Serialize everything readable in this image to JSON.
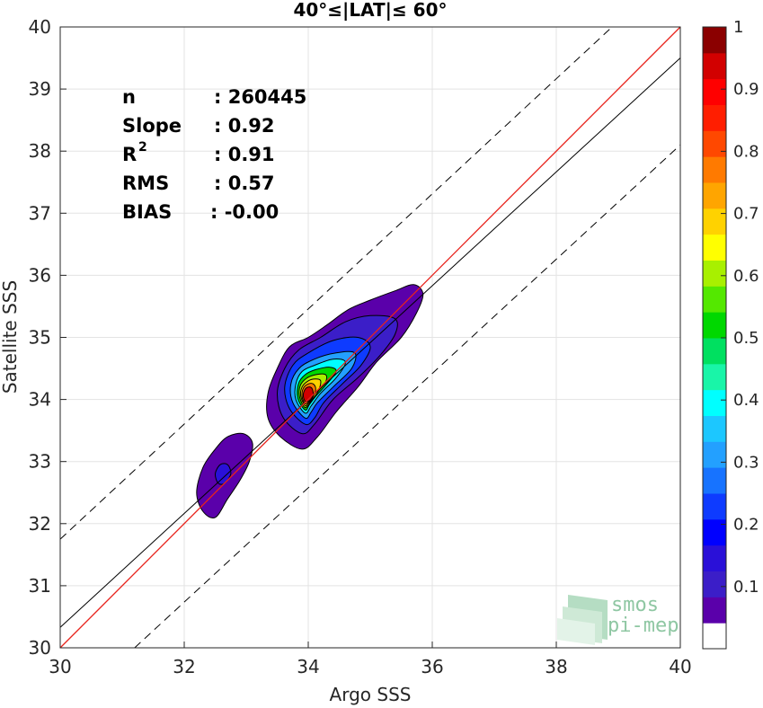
{
  "chart_data": {
    "type": "scatter",
    "title": "40°≤|LAT|≤ 60°",
    "xlabel": "Argo SSS",
    "ylabel": "Satellite SSS",
    "xlim": [
      30,
      40
    ],
    "ylim": [
      30,
      40
    ],
    "xticks": [
      "30",
      "32",
      "34",
      "36",
      "38",
      "40"
    ],
    "yticks": [
      "30",
      "31",
      "32",
      "33",
      "34",
      "35",
      "36",
      "37",
      "38",
      "39",
      "40"
    ],
    "grid": true,
    "stats": [
      {
        "label": "n",
        "value": ": 260445"
      },
      {
        "label": "Slope",
        "value": ": 0.92"
      },
      {
        "label": "R",
        "sup": "2",
        "value": ": 0.91"
      },
      {
        "label": "RMS",
        "value": ": 0.57"
      },
      {
        "label": "BIAS",
        "value": ": -0.00"
      }
    ],
    "reference_lines": {
      "one_to_one": {
        "x": [
          30,
          40
        ],
        "y": [
          30,
          40
        ],
        "color": "#e8231c"
      },
      "regression": {
        "x": [
          30,
          40
        ],
        "y": [
          30.33,
          39.5
        ],
        "color": "#000000"
      },
      "upper_bound": {
        "x": [
          30,
          38.9
        ],
        "y": [
          31.75,
          40
        ],
        "style": "dashed"
      },
      "lower_bound": {
        "x": [
          31.2,
          40
        ],
        "y": [
          30,
          38.1
        ],
        "style": "dashed"
      }
    },
    "density_contours": [
      {
        "level": 0.05,
        "polygon": [
          [
            32.5,
            32.1
          ],
          [
            32.3,
            32.2
          ],
          [
            32.2,
            32.5
          ],
          [
            32.3,
            32.9
          ],
          [
            32.5,
            33.2
          ],
          [
            32.7,
            33.4
          ],
          [
            32.95,
            33.45
          ],
          [
            33.1,
            33.3
          ],
          [
            33.05,
            33.0
          ],
          [
            32.9,
            32.7
          ],
          [
            32.7,
            32.4
          ]
        ]
      },
      {
        "level": 0.15,
        "polygon": [
          [
            32.55,
            32.65
          ],
          [
            32.5,
            32.8
          ],
          [
            32.58,
            32.95
          ],
          [
            32.7,
            32.95
          ],
          [
            32.75,
            32.8
          ],
          [
            32.65,
            32.65
          ]
        ]
      },
      {
        "level": 0.05,
        "polygon": [
          [
            33.9,
            33.2
          ],
          [
            33.55,
            33.4
          ],
          [
            33.35,
            33.7
          ],
          [
            33.35,
            34.1
          ],
          [
            33.5,
            34.5
          ],
          [
            33.7,
            34.85
          ],
          [
            34.0,
            35.0
          ],
          [
            34.3,
            35.2
          ],
          [
            34.65,
            35.45
          ],
          [
            35.0,
            35.6
          ],
          [
            35.4,
            35.75
          ],
          [
            35.7,
            35.85
          ],
          [
            35.85,
            35.7
          ],
          [
            35.75,
            35.4
          ],
          [
            35.5,
            35.0
          ],
          [
            35.1,
            34.6
          ],
          [
            34.8,
            34.2
          ],
          [
            34.45,
            33.8
          ],
          [
            34.15,
            33.4
          ]
        ]
      },
      {
        "level": 0.1,
        "polygon": [
          [
            33.9,
            33.45
          ],
          [
            33.6,
            33.7
          ],
          [
            33.5,
            34.1
          ],
          [
            33.62,
            34.5
          ],
          [
            33.85,
            34.8
          ],
          [
            34.2,
            35.0
          ],
          [
            34.6,
            35.25
          ],
          [
            35.0,
            35.35
          ],
          [
            35.4,
            35.3
          ],
          [
            35.4,
            35.05
          ],
          [
            35.15,
            34.7
          ],
          [
            34.8,
            34.35
          ],
          [
            34.4,
            34.0
          ],
          [
            34.1,
            33.6
          ]
        ]
      },
      {
        "level": 0.2,
        "polygon": [
          [
            33.95,
            33.6
          ],
          [
            33.7,
            33.85
          ],
          [
            33.62,
            34.2
          ],
          [
            33.75,
            34.55
          ],
          [
            34.0,
            34.75
          ],
          [
            34.4,
            34.95
          ],
          [
            34.8,
            35.0
          ],
          [
            35.0,
            34.85
          ],
          [
            34.85,
            34.55
          ],
          [
            34.55,
            34.25
          ],
          [
            34.25,
            33.95
          ],
          [
            34.1,
            33.7
          ]
        ]
      },
      {
        "level": 0.3,
        "polygon": [
          [
            33.95,
            33.7
          ],
          [
            33.75,
            33.95
          ],
          [
            33.72,
            34.25
          ],
          [
            33.85,
            34.5
          ],
          [
            34.1,
            34.65
          ],
          [
            34.45,
            34.75
          ],
          [
            34.75,
            34.75
          ],
          [
            34.7,
            34.5
          ],
          [
            34.4,
            34.2
          ],
          [
            34.15,
            33.95
          ],
          [
            34.05,
            33.8
          ]
        ]
      },
      {
        "level": 0.4,
        "polygon": [
          [
            33.95,
            33.78
          ],
          [
            33.8,
            34.0
          ],
          [
            33.8,
            34.25
          ],
          [
            33.9,
            34.45
          ],
          [
            34.1,
            34.55
          ],
          [
            34.4,
            34.65
          ],
          [
            34.6,
            34.6
          ],
          [
            34.45,
            34.35
          ],
          [
            34.2,
            34.1
          ],
          [
            34.05,
            33.9
          ]
        ]
      },
      {
        "level": 0.5,
        "polygon": [
          [
            33.95,
            33.83
          ],
          [
            33.83,
            34.02
          ],
          [
            33.84,
            34.25
          ],
          [
            33.95,
            34.4
          ],
          [
            34.12,
            34.48
          ],
          [
            34.35,
            34.52
          ],
          [
            34.45,
            34.45
          ],
          [
            34.3,
            34.25
          ],
          [
            34.12,
            34.05
          ],
          [
            34.02,
            33.92
          ]
        ]
      },
      {
        "level": 0.6,
        "polygon": [
          [
            33.95,
            33.87
          ],
          [
            33.86,
            34.04
          ],
          [
            33.87,
            34.22
          ],
          [
            33.97,
            34.34
          ],
          [
            34.12,
            34.4
          ],
          [
            34.28,
            34.4
          ],
          [
            34.28,
            34.28
          ],
          [
            34.15,
            34.12
          ],
          [
            34.05,
            33.98
          ]
        ]
      },
      {
        "level": 0.7,
        "polygon": [
          [
            33.95,
            33.9
          ],
          [
            33.88,
            34.05
          ],
          [
            33.9,
            34.2
          ],
          [
            34.0,
            34.3
          ],
          [
            34.12,
            34.33
          ],
          [
            34.2,
            34.3
          ],
          [
            34.17,
            34.15
          ],
          [
            34.08,
            34.02
          ],
          [
            34.01,
            33.95
          ]
        ]
      },
      {
        "level": 0.8,
        "polygon": [
          [
            33.95,
            33.93
          ],
          [
            33.9,
            34.05
          ],
          [
            33.92,
            34.18
          ],
          [
            34.0,
            34.25
          ],
          [
            34.08,
            34.25
          ],
          [
            34.12,
            34.17
          ],
          [
            34.08,
            34.05
          ],
          [
            34.02,
            33.97
          ]
        ]
      },
      {
        "level": 0.95,
        "polygon": [
          [
            33.96,
            33.96
          ],
          [
            33.92,
            34.05
          ],
          [
            33.94,
            34.15
          ],
          [
            34.0,
            34.2
          ],
          [
            34.06,
            34.18
          ],
          [
            34.08,
            34.08
          ],
          [
            34.04,
            34.0
          ]
        ]
      }
    ],
    "colorbar": {
      "range": [
        0,
        1
      ],
      "ticks": [
        "0.1",
        "0.2",
        "0.3",
        "0.4",
        "0.5",
        "0.6",
        "0.7",
        "0.8",
        "0.9",
        "1"
      ],
      "colors": [
        "#ffffff",
        "#5a00aa",
        "#3b1ec8",
        "#2a10d8",
        "#0000ff",
        "#0e3bff",
        "#1773ff",
        "#23a0ff",
        "#1cc7ff",
        "#00ffff",
        "#19f5a8",
        "#00e060",
        "#00d800",
        "#54e800",
        "#a8f000",
        "#ffff00",
        "#ffd200",
        "#ffa500",
        "#ff7a00",
        "#ff4800",
        "#ff1e00",
        "#ff0000",
        "#d20000",
        "#8b0000"
      ]
    },
    "logo": {
      "line1": "smos",
      "line2": "pi-mep"
    }
  }
}
